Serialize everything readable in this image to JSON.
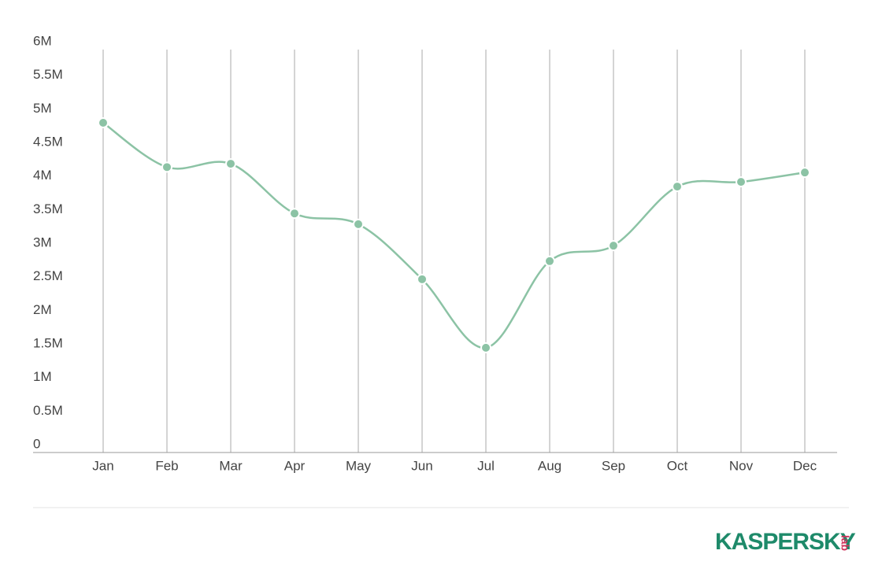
{
  "chart_data": {
    "type": "line",
    "categories": [
      "Jan",
      "Feb",
      "Mar",
      "Apr",
      "May",
      "Jun",
      "Jul",
      "Aug",
      "Sep",
      "Oct",
      "Nov",
      "Dec"
    ],
    "series": [
      {
        "color": "#8cc3a5",
        "values": [
          4.91,
          4.25,
          4.3,
          3.56,
          3.4,
          2.58,
          1.56,
          2.85,
          3.08,
          3.96,
          4.03,
          4.17
        ]
      }
    ],
    "ylim": [
      0,
      6
    ],
    "yticks": [
      0,
      {
        "value": 0.5,
        "label": "0.5M"
      },
      {
        "value": 1,
        "label": "1M"
      },
      {
        "value": 1.5,
        "label": "1.5M"
      },
      {
        "value": 2,
        "label": "2M"
      },
      {
        "value": 2.5,
        "label": "2.5M"
      },
      {
        "value": 3,
        "label": "3M"
      },
      {
        "value": 3.5,
        "label": "3.5M"
      },
      {
        "value": 4,
        "label": "4M"
      },
      {
        "value": 4.5,
        "label": "4.5M"
      },
      {
        "value": 5,
        "label": "5M"
      },
      {
        "value": 5.5,
        "label": "5.5M"
      },
      {
        "value": 6,
        "label": "6M"
      }
    ],
    "grid": "x",
    "smooth": true
  },
  "logo": {
    "name": "KASPERSKY",
    "suffix": "lab"
  }
}
